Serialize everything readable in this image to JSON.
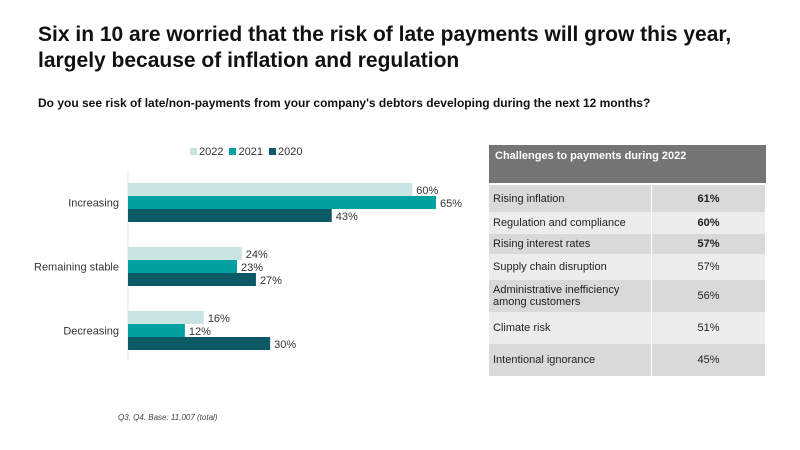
{
  "title": "Six in 10 are worried that the risk of late payments will grow this year, largely because of inflation and regulation",
  "subtitle": "Do you see risk of late/non-payments from your company's debtors developing during the next 12 months?",
  "note": "Q3, Q4. Base: 11,007 (total)",
  "chart_data": {
    "type": "bar",
    "orientation": "horizontal",
    "categories": [
      "Increasing",
      "Remaining stable",
      "Decreasing"
    ],
    "series": [
      {
        "name": "2022",
        "color": "#c8e3e1",
        "values": [
          60,
          24,
          16
        ],
        "labels": [
          "60%",
          "24%",
          "16%"
        ]
      },
      {
        "name": "2021",
        "color": "#00a19e",
        "values": [
          65,
          23,
          12
        ],
        "labels": [
          "65%",
          "23%",
          "12%"
        ]
      },
      {
        "name": "2020",
        "color": "#0b5a66",
        "values": [
          43,
          27,
          30
        ],
        "labels": [
          "43%",
          "27%",
          "30%"
        ]
      }
    ],
    "xlim": [
      0,
      65
    ],
    "legend": "top"
  },
  "table": {
    "header": "Challenges to payments during 2022",
    "rows": [
      {
        "label": "Rising inflation",
        "value": "61%",
        "bold": true
      },
      {
        "label": "Regulation and compliance",
        "value": "60%",
        "bold": true
      },
      {
        "label": "Rising interest rates",
        "value": "57%",
        "bold": true
      },
      {
        "label": "Supply chain disruption",
        "value": "57%",
        "bold": false
      },
      {
        "label": "Administrative inefficiency among customers",
        "value": "56%",
        "bold": false
      },
      {
        "label": "Climate risk",
        "value": "51%",
        "bold": false
      },
      {
        "label": "Intentional ignorance",
        "value": "45%",
        "bold": false
      }
    ]
  }
}
